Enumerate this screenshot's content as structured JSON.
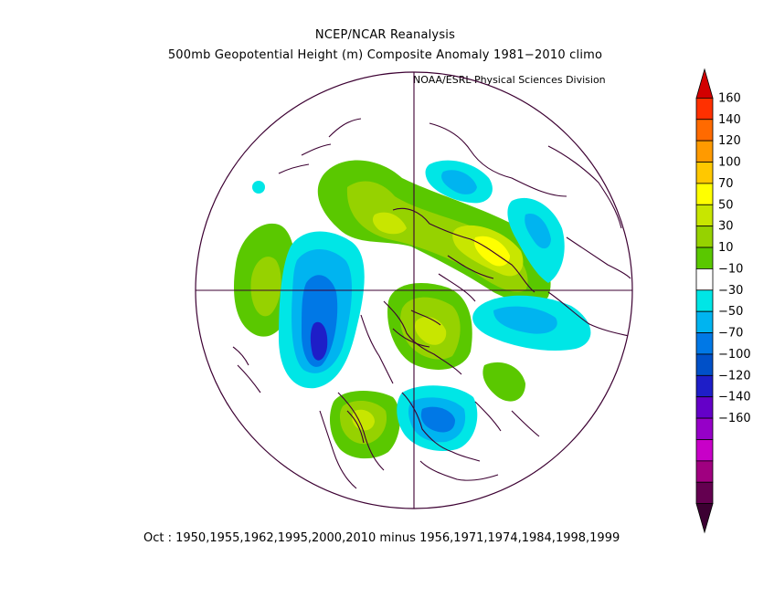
{
  "header": {
    "title": "NCEP/NCAR Reanalysis",
    "subtitle": "500mb Geopotential Height (m) Composite Anomaly 1981−2010 climo",
    "credit": "NOAA/ESRL Physical Sciences Division"
  },
  "footer": {
    "caption": "Oct : 1950,1955,1962,1995,2000,2010 minus 1956,1971,1974,1984,1998,1999"
  },
  "colorbar": {
    "levels": [
      "160",
      "140",
      "120",
      "100",
      "70",
      "50",
      "30",
      "10",
      "−10",
      "−30",
      "−50",
      "−70",
      "−100",
      "−120",
      "−140",
      "−160"
    ],
    "colors": [
      "#d20000",
      "#ff3000",
      "#ff6a00",
      "#ff9a00",
      "#ffc800",
      "#ffff00",
      "#c8e600",
      "#96d200",
      "#5ac800",
      "#ffffff",
      "#00e6e6",
      "#00b4f0",
      "#0078e6",
      "#0050c8",
      "#1e1ec8",
      "#6400c8",
      "#9600c8",
      "#c800c8",
      "#a00080",
      "#640050",
      "#3c0032"
    ]
  },
  "map": {
    "projection": "north-polar-stereographic",
    "contour_palette": {
      "green": "#5ac800",
      "lightgreen": "#96d200",
      "yellowgreen": "#c8e600",
      "yellow": "#ffff00",
      "cyan": "#00e6e6",
      "lightblue": "#00b4f0",
      "blue": "#0078e6",
      "darkblue": "#0050c8",
      "navy": "#1e1ec8"
    },
    "coastline_color": "#3c0032"
  }
}
